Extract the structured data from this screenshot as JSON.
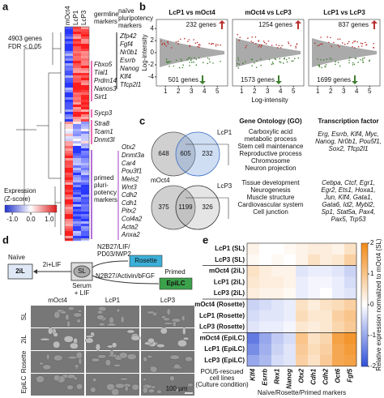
{
  "panel_labels": [
    "a",
    "b",
    "c",
    "d",
    "e"
  ],
  "panel_a": {
    "columns": [
      "mOct4",
      "LcP1",
      "LcP3"
    ],
    "note": [
      "4903 genes",
      "FDR < 0.05"
    ],
    "germline_label": [
      "germline",
      "markers"
    ],
    "germline_genes": [
      "Fbxo5",
      "Tial1",
      "Prdm14",
      "Nanos3",
      "Sirt1",
      "Sycp3",
      "Stra8",
      "Tcam1",
      "Dnmt3l"
    ],
    "naive_label": [
      "naïve",
      "pluripotency",
      "markers"
    ],
    "naive_genes": [
      "Zfp42",
      "Fgf4",
      "Nr0b1",
      "Esrrb",
      "Nanog",
      "Klf4",
      "Tfcp2l1"
    ],
    "primed_label": [
      "primed",
      "pluri-",
      "potency",
      "markers"
    ],
    "primed_genes": [
      "Otx2",
      "Dnmt3a",
      "Car4",
      "Pou3f1",
      "Meis2",
      "Wnt3",
      "Cdh2",
      "Cdh1",
      "Pitx2",
      "Col4a2",
      "Acta2",
      "Anxa2"
    ],
    "colorbar": {
      "title": [
        "Expression",
        "(Z-score)"
      ],
      "lim": [
        -1.4,
        1.4
      ],
      "ticks": [
        {
          "value": -1,
          "label": "-1.0"
        },
        {
          "value": 0,
          "label": "0.0"
        },
        {
          "value": 1,
          "label": "1.0"
        }
      ]
    }
  },
  "panel_b": {
    "plots": [
      {
        "title": "LcP1 vs mOct4",
        "up_label": "232 genes",
        "down_label": "501 genes"
      },
      {
        "title": "mOct4 vs LcP3",
        "up_label": "1254 genes",
        "down_label": "1573 genes"
      },
      {
        "title": "LcP1 vs LcP3",
        "up_label": "837 genes",
        "down_label": "1699 genes"
      }
    ],
    "xlim": [
      0.3,
      5.8
    ],
    "xticks": [
      1,
      2,
      3,
      4,
      5
    ],
    "ylim": [
      -5.5,
      5.5
    ],
    "yticks": [
      4,
      2,
      0,
      -2,
      -4
    ],
    "xlabel": "Log-intensity",
    "ylabel": "Log-intensity"
  },
  "panel_c": {
    "go_header": "Gene Ontology (GO)",
    "tf_header": "Transcription factor",
    "venns": [
      {
        "sets": [
          "mOct4",
          "LcP1"
        ],
        "counts": [
          648,
          605,
          232
        ],
        "go": [
          "Carboxylic acid",
          "metabolic process",
          "Stem cell maintenance",
          "Reproductive process"
        ],
        "go_highlight": [
          "Chromosome",
          "Neuron projection"
        ],
        "tf": [
          "Erg, Esrrb, Klf4, Myc,",
          "Nanog, Nr0b1, Pou5f1,",
          "Sox2, Tfcp2l1"
        ]
      },
      {
        "sets": [
          "mOct4",
          "LcP3"
        ],
        "counts": [
          375,
          1199,
          326
        ],
        "go": [
          "Tissue development",
          "Neurogenesis",
          "Muscle structure",
          "Cardiovascular system"
        ],
        "go_highlight": [
          "Cell junction"
        ],
        "tf": [
          "Cebpa, Ctcf, Egr1,",
          "Egr2, Ets1, Hoxa1,",
          "Jun, Klf4, Gata1,",
          "Gata6, Id2, Mybl2,",
          "Sp1, Stat5a, Pax4,",
          "Pax5, Trp53"
        ]
      }
    ]
  },
  "panel_d": {
    "naive": "Naïve",
    "primed": "Primed",
    "states": [
      "2iL",
      "SL",
      "Rosette",
      "EpiLC"
    ],
    "to_naive": "2i+LIF",
    "serum": [
      "Serum",
      "+ LIF"
    ],
    "to_rosette": [
      "N2B27/LIF/",
      "PD03/IWP2"
    ],
    "to_primed": "N2B27/Activin/bFGF",
    "image_columns": [
      "mOct4",
      "LcP1",
      "LcP3"
    ],
    "image_rows": [
      "SL",
      "2iL",
      "Rosette",
      "EpiLC"
    ],
    "scale_bar": "100 µm"
  },
  "panel_e": {
    "type": "heatmap",
    "rows": [
      "LcP1 (SL)",
      "LcP3 (SL)",
      "mOct4 (2iL)",
      "LcP1 (2iL)",
      "LcP3 (2iL)",
      "mOct4 (Rosette)",
      "LcP1 (Rosette)",
      "LcP3 (Rosette)",
      "mOct4 (EpiLC)",
      "LcP1 (EpiLC)",
      "LcP3 (EpiLC)"
    ],
    "columns": [
      "Klf4",
      "Esrrb",
      "Rex1",
      "Nanog",
      "Otx2",
      "Cdh1",
      "Cdh2",
      "Oct6",
      "Fgf5"
    ],
    "values": [
      [
        0.2,
        0,
        0,
        0.1,
        0.2,
        0.3,
        0.3,
        0.2,
        0.5
      ],
      [
        0.1,
        0,
        0.1,
        0,
        0.2,
        0.5,
        0.3,
        0.4,
        0.8
      ],
      [
        0.5,
        0.3,
        0.2,
        0.2,
        -0.3,
        -0.2,
        -0.2,
        -0.3,
        -0.5
      ],
      [
        0.4,
        0.3,
        0.3,
        0.2,
        -0.2,
        -0.1,
        -0.1,
        -0.2,
        -0.4
      ],
      [
        0.3,
        0.2,
        0.2,
        0.1,
        -0.2,
        -0.1,
        0,
        -0.2,
        -0.3
      ],
      [
        -0.5,
        -0.4,
        -0.3,
        -0.2,
        0.5,
        0.3,
        0.5,
        0.6,
        0.8
      ],
      [
        -0.4,
        -0.3,
        -0.3,
        -0.2,
        0.6,
        0.4,
        0.4,
        0.8,
        1
      ],
      [
        -0.3,
        -0.2,
        -0.2,
        -0.1,
        0.4,
        0.3,
        0.4,
        0.7,
        0.9
      ],
      [
        -1.5,
        -1,
        -0.6,
        -0.4,
        1,
        0.5,
        0.7,
        1.6,
        1.8
      ],
      [
        -1.3,
        -0.9,
        -0.5,
        -0.3,
        0.9,
        0.6,
        0.8,
        1.5,
        1.7
      ],
      [
        -1,
        -0.8,
        -0.4,
        -0.3,
        0.8,
        0.5,
        0.9,
        1.5,
        1.6
      ]
    ],
    "zlim": [
      -2,
      2
    ],
    "zticks": [
      2,
      1,
      0,
      -1,
      -2
    ],
    "colors": [
      "#2f4fd8",
      "#ffffff",
      "#f28a17"
    ],
    "colorbar_label": "Relative expression normalized to mOct4 (SL)",
    "row_note": [
      "POU5-rescued",
      "cell lines",
      "(Culture condition)"
    ],
    "xlabel": "Naïve/Rosette/Primed markers"
  }
}
